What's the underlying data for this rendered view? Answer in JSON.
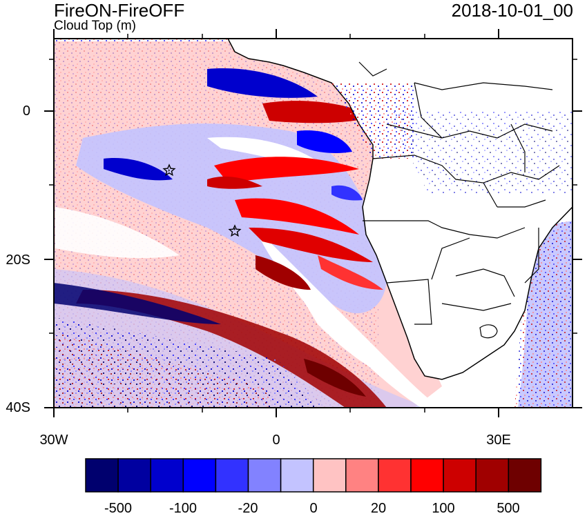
{
  "header": {
    "title": "FireON-FireOFF",
    "subtitle": "Cloud Top (m)",
    "timestamp": "2018-10-01_00"
  },
  "axes": {
    "lat_labels": [
      "0",
      "20S",
      "40S"
    ],
    "lon_labels": [
      "30W",
      "0",
      "30E"
    ]
  },
  "colorbar": {
    "colors": [
      "#00006e",
      "#0000a0",
      "#0000cd",
      "#0000ff",
      "#3232ff",
      "#8282ff",
      "#c3c3ff",
      "#ffc3c3",
      "#ff8282",
      "#ff3232",
      "#ff0000",
      "#cd0000",
      "#a00000",
      "#6e0000"
    ],
    "labels": [
      "-500",
      "-100",
      "-20",
      "0",
      "20",
      "100",
      "500"
    ]
  },
  "markers": {
    "icon": "star-icon",
    "count": 2
  }
}
